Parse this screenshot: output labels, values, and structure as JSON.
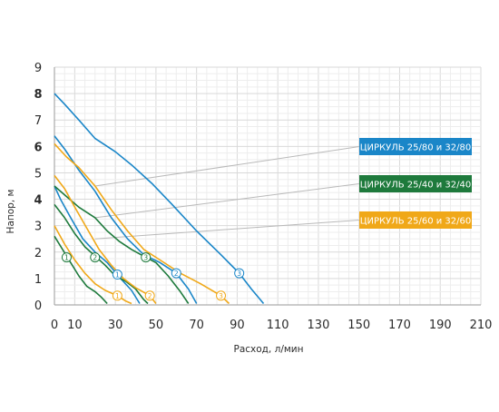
{
  "chart_data": {
    "type": "line",
    "xlabel": "Расход, л/мин",
    "ylabel": "Напор, м",
    "xlim": [
      0,
      210
    ],
    "ylim": [
      0,
      9
    ],
    "x_ticks": [
      "0",
      "10",
      "30",
      "50",
      "70",
      "90",
      "110",
      "130",
      "150",
      "170",
      "190",
      "210"
    ],
    "y_ticks": [
      "0",
      "1",
      "2",
      "3",
      "4",
      "5",
      "6",
      "7",
      "8",
      "9"
    ],
    "grid": true,
    "minor_grid": true,
    "legend_placement": "right",
    "groups": [
      {
        "name": "ЦИРКУЛЬ 25/80 и 32/80",
        "color": "#1a86c8",
        "label_anchor": [
          20,
          4.5
        ],
        "series": [
          {
            "marker": "1",
            "marker_at": [
              31,
              1.15
            ],
            "values": [
              [
                0,
                4.5
              ],
              [
                3,
                4.0
              ],
              [
                8,
                3.3
              ],
              [
                14,
                2.5
              ],
              [
                20,
                2.0
              ],
              [
                26,
                1.6
              ],
              [
                32,
                1.05
              ],
              [
                38,
                0.55
              ],
              [
                42,
                0.05
              ]
            ]
          },
          {
            "marker": "2",
            "marker_at": [
              60,
              1.2
            ],
            "values": [
              [
                0,
                6.4
              ],
              [
                5,
                5.9
              ],
              [
                12,
                5.1
              ],
              [
                20,
                4.3
              ],
              [
                28,
                3.3
              ],
              [
                36,
                2.5
              ],
              [
                44,
                1.9
              ],
              [
                52,
                1.6
              ],
              [
                60,
                1.2
              ],
              [
                66,
                0.6
              ],
              [
                70,
                0.05
              ]
            ]
          },
          {
            "marker": "3",
            "marker_at": [
              91,
              1.2
            ],
            "values": [
              [
                0,
                8.0
              ],
              [
                5,
                7.6
              ],
              [
                12,
                7.0
              ],
              [
                20,
                6.3
              ],
              [
                30,
                5.8
              ],
              [
                38,
                5.3
              ],
              [
                48,
                4.6
              ],
              [
                58,
                3.8
              ],
              [
                70,
                2.8
              ],
              [
                82,
                1.9
              ],
              [
                91,
                1.2
              ],
              [
                97,
                0.6
              ],
              [
                103,
                0.05
              ]
            ]
          }
        ]
      },
      {
        "name": "ЦИРКУЛЬ 25/40 и 32/40",
        "color": "#1e7a3c",
        "label_anchor": [
          20,
          3.3
        ],
        "series": [
          {
            "marker": "1",
            "marker_at": [
              6,
              1.8
            ],
            "values": [
              [
                0,
                2.6
              ],
              [
                4,
                2.1
              ],
              [
                8,
                1.6
              ],
              [
                12,
                1.1
              ],
              [
                16,
                0.7
              ],
              [
                20,
                0.5
              ],
              [
                23,
                0.3
              ],
              [
                26,
                0.05
              ]
            ]
          },
          {
            "marker": "2",
            "marker_at": [
              20,
              1.8
            ],
            "values": [
              [
                0,
                3.8
              ],
              [
                5,
                3.3
              ],
              [
                10,
                2.7
              ],
              [
                15,
                2.2
              ],
              [
                20,
                1.85
              ],
              [
                25,
                1.5
              ],
              [
                30,
                1.1
              ],
              [
                35,
                0.9
              ],
              [
                40,
                0.6
              ],
              [
                44,
                0.2
              ],
              [
                46,
                0.05
              ]
            ]
          },
          {
            "marker": "3",
            "marker_at": [
              45,
              1.8
            ],
            "values": [
              [
                0,
                4.5
              ],
              [
                6,
                4.1
              ],
              [
                12,
                3.7
              ],
              [
                20,
                3.3
              ],
              [
                26,
                2.8
              ],
              [
                32,
                2.4
              ],
              [
                38,
                2.1
              ],
              [
                45,
                1.8
              ],
              [
                50,
                1.6
              ],
              [
                56,
                1.1
              ],
              [
                62,
                0.5
              ],
              [
                66,
                0.05
              ]
            ]
          }
        ]
      },
      {
        "name": "ЦИРКУЛЬ 25/60 и 32/60",
        "color": "#f0a818",
        "label_anchor": [
          20,
          2.5
        ],
        "series": [
          {
            "marker": "1",
            "marker_at": [
              31,
              0.35
            ],
            "values": [
              [
                0,
                3.0
              ],
              [
                5,
                2.3
              ],
              [
                10,
                1.7
              ],
              [
                15,
                1.2
              ],
              [
                20,
                0.8
              ],
              [
                25,
                0.55
              ],
              [
                31,
                0.35
              ],
              [
                35,
                0.15
              ],
              [
                38,
                0.05
              ]
            ]
          },
          {
            "marker": "2",
            "marker_at": [
              47,
              0.35
            ],
            "values": [
              [
                0,
                4.9
              ],
              [
                5,
                4.4
              ],
              [
                10,
                3.7
              ],
              [
                16,
                2.9
              ],
              [
                22,
                2.1
              ],
              [
                28,
                1.5
              ],
              [
                34,
                1.0
              ],
              [
                40,
                0.65
              ],
              [
                47,
                0.35
              ],
              [
                50,
                0.05
              ]
            ]
          },
          {
            "marker": "3",
            "marker_at": [
              82,
              0.35
            ],
            "values": [
              [
                0,
                6.1
              ],
              [
                6,
                5.6
              ],
              [
                12,
                5.2
              ],
              [
                20,
                4.5
              ],
              [
                28,
                3.6
              ],
              [
                36,
                2.8
              ],
              [
                44,
                2.1
              ],
              [
                52,
                1.7
              ],
              [
                62,
                1.2
              ],
              [
                72,
                0.8
              ],
              [
                82,
                0.35
              ],
              [
                86,
                0.05
              ]
            ]
          }
        ]
      }
    ]
  },
  "legend": [
    {
      "label": "ЦИРКУЛЬ 25/80 и 32/80",
      "color": "#1a86c8"
    },
    {
      "label": "ЦИРКУЛЬ 25/40 и 32/40",
      "color": "#1e7a3c"
    },
    {
      "label": "ЦИРКУЛЬ 25/60 и 32/60",
      "color": "#f0a818"
    }
  ]
}
